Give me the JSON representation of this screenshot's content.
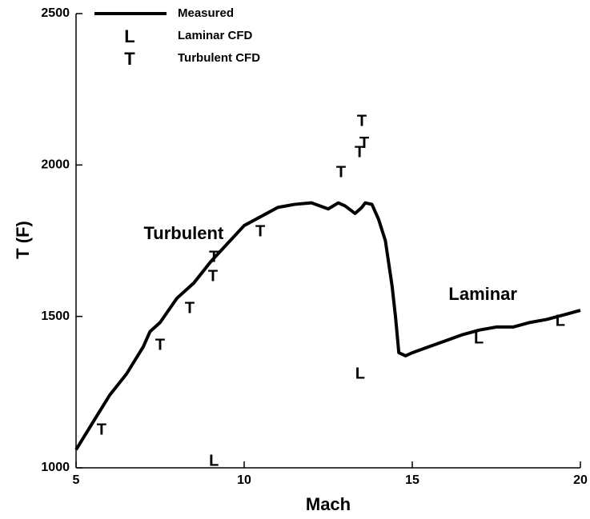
{
  "chart_data": {
    "type": "line",
    "xlabel": "Mach",
    "ylabel": "T (F)",
    "xlim": [
      5,
      20
    ],
    "xticks": [
      5,
      10,
      15,
      20
    ],
    "ylim": [
      1000,
      2500
    ],
    "yticks": [
      1000,
      1500,
      2000,
      2500
    ],
    "legend": "upper left",
    "annotations": [
      {
        "text": "Turbulent",
        "x": 8.2,
        "y": 1770
      },
      {
        "text": "Laminar",
        "x": 17.1,
        "y": 1570
      }
    ],
    "series": [
      {
        "name": "Measured",
        "color": "#000000",
        "x": [
          5.0,
          5.5,
          6.0,
          6.5,
          7.0,
          7.2,
          7.5,
          8.0,
          8.5,
          9.0,
          9.5,
          10.0,
          10.5,
          11.0,
          11.5,
          12.0,
          12.5,
          12.8,
          13.0,
          13.3,
          13.5,
          13.6,
          13.8,
          14.0,
          14.2,
          14.4,
          14.5,
          14.6,
          14.8,
          15.0,
          15.5,
          16.0,
          16.5,
          17.0,
          17.5,
          18.0,
          18.5,
          19.0,
          19.5,
          20.0
        ],
        "values": [
          1060,
          1150,
          1240,
          1310,
          1400,
          1450,
          1480,
          1560,
          1610,
          1680,
          1740,
          1800,
          1830,
          1860,
          1870,
          1875,
          1855,
          1875,
          1865,
          1840,
          1860,
          1875,
          1870,
          1820,
          1750,
          1600,
          1500,
          1380,
          1370,
          1380,
          1400,
          1420,
          1440,
          1455,
          1465,
          1465,
          1480,
          1490,
          1505,
          1520
        ]
      },
      {
        "name": "Laminar CFD",
        "color": "#000000",
        "marker": "L",
        "x": [
          9.1,
          13.45,
          16.98,
          19.4
        ],
        "values": [
          1020,
          1309,
          1425,
          1483
        ]
      },
      {
        "name": "Turbulent CFD",
        "color": "#000000",
        "marker": "T",
        "x": [
          5.76,
          7.5,
          8.38,
          9.07,
          9.1,
          10.48,
          12.88,
          13.43,
          13.57,
          13.5
        ],
        "values": [
          1124,
          1404,
          1525,
          1631,
          1694,
          1779,
          1974,
          2040,
          2070,
          2143
        ]
      }
    ]
  }
}
